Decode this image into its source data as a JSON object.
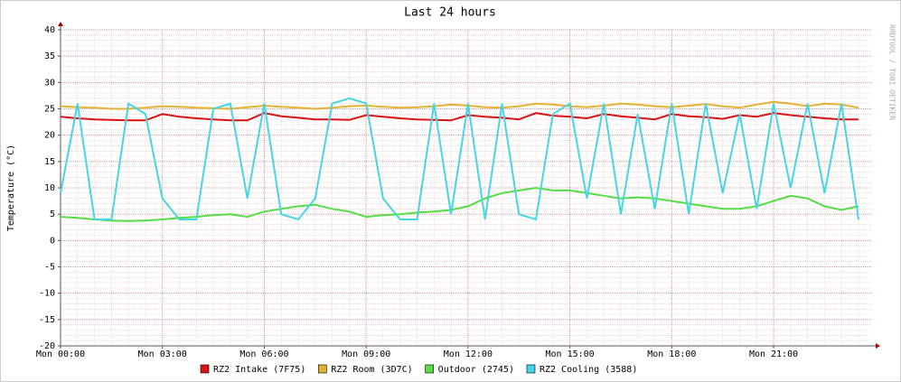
{
  "chart_data": {
    "type": "line",
    "title": "Last 24 hours",
    "y_label": "Temperature (°C)",
    "side_label": "RRDTOOL / TOBI OETIKER",
    "grid": true,
    "legend": "bottom",
    "x": [
      0,
      0.5,
      1,
      1.5,
      2,
      2.5,
      3,
      3.5,
      4,
      4.5,
      5,
      5.5,
      6,
      6.5,
      7,
      7.5,
      8,
      8.5,
      9,
      9.5,
      10,
      10.5,
      11,
      11.5,
      12,
      12.5,
      13,
      13.5,
      14,
      14.5,
      15,
      15.5,
      16,
      16.5,
      17,
      17.5,
      18,
      18.5,
      19,
      19.5,
      20,
      20.5,
      21,
      21.5,
      22,
      22.5,
      23,
      23.5
    ],
    "xlim": [
      0,
      23.9
    ],
    "xticks": [
      {
        "value": 0,
        "label": "Mon 00:00"
      },
      {
        "value": 3,
        "label": "Mon 03:00"
      },
      {
        "value": 6,
        "label": "Mon 06:00"
      },
      {
        "value": 9,
        "label": "Mon 09:00"
      },
      {
        "value": 12,
        "label": "Mon 12:00"
      },
      {
        "value": 15,
        "label": "Mon 15:00"
      },
      {
        "value": 18,
        "label": "Mon 18:00"
      },
      {
        "value": 21,
        "label": "Mon 21:00"
      }
    ],
    "ylim": [
      -20,
      40
    ],
    "yticks": [
      -20,
      -15,
      -10,
      -5,
      0,
      5,
      10,
      15,
      20,
      25,
      30,
      35,
      40
    ],
    "series": [
      {
        "name": "RZ2 Intake (7F75)",
        "color": "#dd1111",
        "values": [
          23.5,
          23.2,
          23.0,
          22.9,
          22.8,
          22.8,
          24.0,
          23.5,
          23.2,
          23.0,
          22.8,
          22.8,
          24.2,
          23.6,
          23.3,
          23.0,
          23.0,
          22.9,
          23.8,
          23.5,
          23.2,
          23.0,
          22.9,
          22.8,
          23.8,
          23.5,
          23.3,
          23.0,
          24.2,
          23.7,
          23.5,
          23.2,
          24.0,
          23.6,
          23.3,
          23.0,
          24.0,
          23.6,
          23.4,
          23.1,
          23.8,
          23.5,
          24.2,
          23.8,
          23.5,
          23.2,
          23.0,
          23.0
        ]
      },
      {
        "name": "RZ2 Room (3D7C)",
        "color": "#e6b030",
        "values": [
          25.5,
          25.3,
          25.2,
          25.0,
          25.0,
          25.2,
          25.5,
          25.4,
          25.2,
          25.1,
          25.0,
          25.3,
          25.6,
          25.4,
          25.2,
          25.0,
          25.2,
          25.5,
          25.6,
          25.4,
          25.2,
          25.3,
          25.5,
          25.8,
          25.6,
          25.3,
          25.2,
          25.5,
          26.0,
          25.8,
          25.5,
          25.3,
          25.6,
          26.0,
          25.8,
          25.5,
          25.3,
          25.6,
          25.9,
          25.5,
          25.2,
          25.8,
          26.3,
          26.0,
          25.5,
          26.0,
          25.8,
          25.2
        ]
      },
      {
        "name": "Outdoor (2745)",
        "color": "#55dd44",
        "values": [
          4.5,
          4.3,
          4.0,
          3.8,
          3.7,
          3.8,
          4.0,
          4.3,
          4.5,
          4.8,
          5.0,
          4.5,
          5.5,
          6.0,
          6.5,
          6.8,
          6.0,
          5.5,
          4.5,
          4.8,
          5.0,
          5.3,
          5.5,
          5.8,
          6.5,
          8.0,
          9.0,
          9.5,
          10.0,
          9.5,
          9.5,
          9.0,
          8.5,
          8.0,
          8.2,
          8.0,
          7.5,
          7.0,
          6.5,
          6.0,
          6.0,
          6.5,
          7.5,
          8.5,
          8.0,
          6.5,
          5.8,
          6.5
        ]
      },
      {
        "name": "RZ2 Cooling (3588)",
        "color": "#44d6e6",
        "values": [
          9,
          26,
          4,
          4,
          26,
          24,
          8,
          4,
          4,
          25,
          26,
          8,
          26,
          5,
          4,
          8,
          26,
          27,
          26,
          8,
          4,
          4,
          26,
          5,
          26,
          4,
          26,
          5,
          4,
          24,
          26,
          8,
          26,
          5,
          24,
          6,
          26,
          5,
          26,
          9,
          24,
          6,
          26,
          10,
          26,
          9,
          26,
          4
        ]
      }
    ]
  }
}
